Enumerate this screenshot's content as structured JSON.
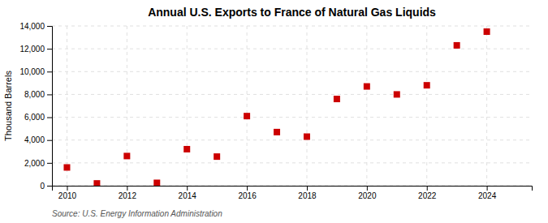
{
  "chart_data": {
    "type": "scatter",
    "title": "Annual U.S. Exports to France of Natural Gas Liquids",
    "y_label": "Thousand Barrels",
    "annotations": [
      "Source: U.S. Energy Information Administration"
    ],
    "x": [
      2010,
      2011,
      2012,
      2013,
      2014,
      2015,
      2016,
      2017,
      2018,
      2019,
      2020,
      2021,
      2022,
      2023,
      2024
    ],
    "values": [
      1600,
      200,
      2600,
      250,
      3200,
      2550,
      6100,
      4700,
      4300,
      7600,
      8700,
      8000,
      8800,
      12300,
      13500
    ],
    "color": "#cc0000",
    "marker": "square",
    "xlim": [
      2009.5,
      2025.5
    ],
    "ylim": [
      0,
      14000
    ],
    "xticks": [
      2010,
      2012,
      2014,
      2016,
      2018,
      2020,
      2022,
      2024
    ],
    "yticks": [
      0,
      {
        "value": 2000,
        "label": "2,000"
      },
      {
        "value": 4000,
        "label": "4,000"
      },
      {
        "value": 6000,
        "label": "6,000"
      },
      {
        "value": 8000,
        "label": "8,000"
      },
      {
        "value": 10000,
        "label": "10,000"
      },
      {
        "value": 12000,
        "label": "12,000"
      },
      {
        "value": 14000,
        "label": "14,000"
      }
    ],
    "grid": true
  }
}
